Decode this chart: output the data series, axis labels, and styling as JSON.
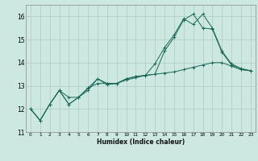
{
  "xlabel": "Humidex (Indice chaleur)",
  "bg_color": "#cce8e0",
  "grid_color": "#aaccc4",
  "line_color": "#1a6858",
  "xlim": [
    -0.5,
    23.5
  ],
  "ylim": [
    11,
    16.5
  ],
  "yticks": [
    11,
    12,
    13,
    14,
    15,
    16
  ],
  "xticks": [
    0,
    1,
    2,
    3,
    4,
    5,
    6,
    7,
    8,
    9,
    10,
    11,
    12,
    13,
    14,
    15,
    16,
    17,
    18,
    19,
    20,
    21,
    22,
    23
  ],
  "line1_x": [
    0,
    1,
    2,
    3,
    4,
    5,
    6,
    7,
    8,
    9,
    10,
    11,
    12,
    13,
    14,
    15,
    16,
    17,
    18,
    19,
    20,
    21,
    22,
    23
  ],
  "line1_y": [
    12.0,
    11.5,
    12.2,
    12.8,
    12.5,
    12.5,
    12.8,
    13.3,
    13.05,
    13.1,
    13.3,
    13.4,
    13.45,
    13.5,
    14.5,
    15.1,
    15.85,
    16.1,
    15.5,
    15.45,
    14.45,
    13.9,
    13.7,
    13.65
  ],
  "line2_x": [
    0,
    1,
    2,
    3,
    4,
    5,
    6,
    7,
    8,
    9,
    10,
    11,
    12,
    13,
    14,
    15,
    16,
    17,
    18,
    19,
    20,
    21,
    22,
    23
  ],
  "line2_y": [
    12.0,
    11.5,
    12.2,
    12.8,
    12.2,
    12.5,
    12.9,
    13.3,
    13.1,
    13.1,
    13.3,
    13.4,
    13.45,
    13.95,
    14.65,
    15.2,
    15.9,
    15.65,
    16.1,
    15.5,
    14.5,
    13.95,
    13.75,
    13.65
  ],
  "line3_x": [
    0,
    1,
    2,
    3,
    4,
    5,
    6,
    7,
    8,
    9,
    10,
    11,
    12,
    13,
    14,
    15,
    16,
    17,
    18,
    19,
    20,
    21,
    22,
    23
  ],
  "line3_y": [
    12.0,
    11.5,
    12.2,
    12.8,
    12.2,
    12.5,
    12.9,
    13.1,
    13.1,
    13.1,
    13.25,
    13.35,
    13.45,
    13.5,
    13.55,
    13.6,
    13.7,
    13.8,
    13.9,
    14.0,
    14.0,
    13.85,
    13.7,
    13.65
  ]
}
